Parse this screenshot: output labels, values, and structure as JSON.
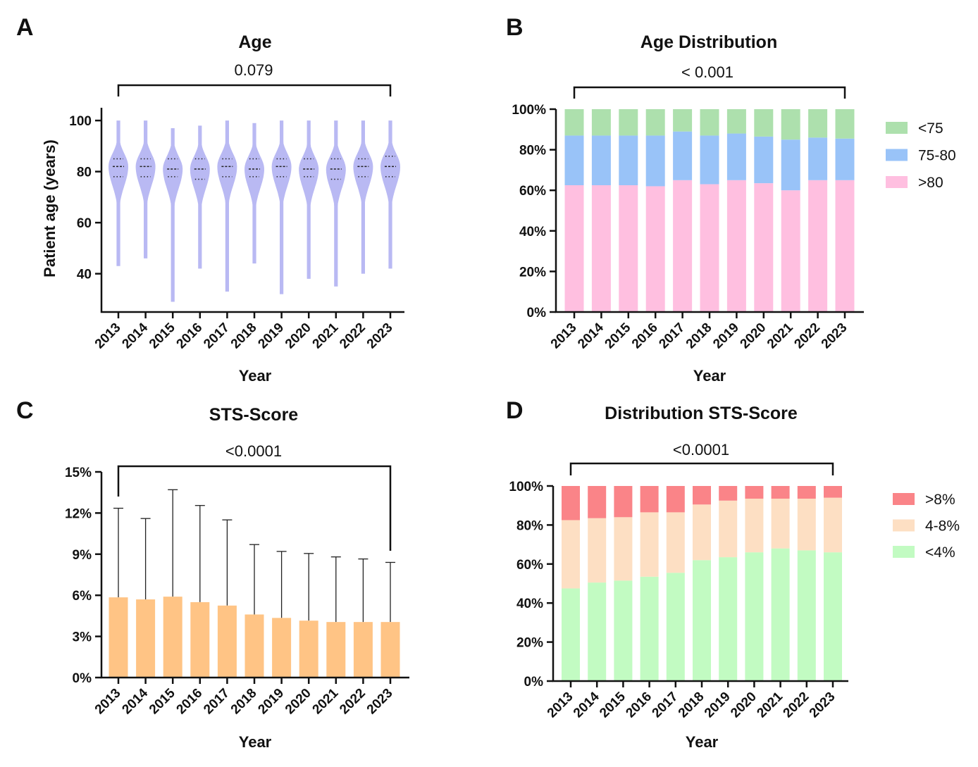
{
  "chart_data": [
    {
      "panel": "A",
      "type": "violin",
      "title": "Age",
      "xlabel": "Year",
      "ylabel": "Patient age (years)",
      "ylim": [
        25,
        105
      ],
      "yticks": [
        "40",
        "60",
        "80",
        "100"
      ],
      "categories": [
        "2013",
        "2014",
        "2015",
        "2016",
        "2017",
        "2018",
        "2019",
        "2020",
        "2021",
        "2022",
        "2023"
      ],
      "annotation": "0.079",
      "color": "#b9b9f3",
      "min": [
        43,
        46,
        29,
        42,
        33,
        44,
        32,
        38,
        35,
        40,
        42
      ],
      "max": [
        100,
        100,
        97,
        98,
        100,
        99,
        100,
        100,
        100,
        100,
        100
      ],
      "q1": [
        78,
        78,
        78,
        77,
        78,
        78,
        78,
        78,
        77,
        78,
        78
      ],
      "median": [
        82,
        82,
        81,
        81,
        82,
        81,
        82,
        81,
        81,
        82,
        82
      ],
      "q3": [
        85,
        85,
        85,
        85,
        85,
        85,
        85,
        85,
        85,
        85,
        86
      ]
    },
    {
      "panel": "B",
      "type": "stacked-bar",
      "title": "Age Distribution",
      "xlabel": "Year",
      "ylabel": "",
      "ylim": [
        0,
        100
      ],
      "yticks": [
        "0%",
        "20%",
        "40%",
        "60%",
        "80%",
        "100%"
      ],
      "categories": [
        "2013",
        "2014",
        "2015",
        "2016",
        "2017",
        "2018",
        "2019",
        "2020",
        "2021",
        "2022",
        "2023"
      ],
      "annotation": "< 0.001",
      "legend_position": "right",
      "series": [
        {
          "name": ">80",
          "color": "#ffbfe0",
          "values": [
            62.5,
            62.5,
            62.5,
            62,
            65,
            63,
            65,
            63.5,
            60,
            65,
            65
          ]
        },
        {
          "name": "75-80",
          "color": "#99c3f8",
          "values": [
            24.5,
            24.5,
            24.5,
            25,
            24,
            24,
            23,
            23,
            25,
            21,
            20.5
          ]
        },
        {
          "name": "<75",
          "color": "#ade0ad",
          "values": [
            13,
            13,
            13,
            13,
            11,
            13,
            12,
            13.5,
            15,
            14,
            14.5
          ]
        }
      ]
    },
    {
      "panel": "C",
      "type": "bar",
      "title": "STS-Score",
      "xlabel": "Year",
      "ylabel": "",
      "ylim": [
        0,
        15
      ],
      "yticks": [
        "0%",
        "3%",
        "6%",
        "9%",
        "12%",
        "15%"
      ],
      "categories": [
        "2013",
        "2014",
        "2015",
        "2016",
        "2017",
        "2018",
        "2019",
        "2020",
        "2021",
        "2022",
        "2023"
      ],
      "annotation": "<0.0001",
      "color": "#ffc485",
      "values": [
        5.85,
        5.7,
        5.9,
        5.5,
        5.25,
        4.6,
        4.35,
        4.15,
        4.05,
        4.05,
        4.05
      ],
      "error_upper": [
        12.35,
        11.6,
        13.7,
        12.55,
        11.5,
        9.7,
        9.2,
        9.05,
        8.8,
        8.65,
        8.4
      ]
    },
    {
      "panel": "D",
      "type": "stacked-bar",
      "title": "Distribution STS-Score",
      "xlabel": "Year",
      "ylabel": "",
      "ylim": [
        0,
        100
      ],
      "yticks": [
        "0%",
        "20%",
        "40%",
        "60%",
        "80%",
        "100%"
      ],
      "categories": [
        "2013",
        "2014",
        "2015",
        "2016",
        "2017",
        "2018",
        "2019",
        "2020",
        "2021",
        "2022",
        "2023"
      ],
      "annotation": "<0.0001",
      "legend_position": "right",
      "series": [
        {
          "name": "<4%",
          "color": "#c2fbc2",
          "values": [
            47.5,
            50.5,
            51.5,
            53.5,
            55.5,
            62,
            63.5,
            66,
            68,
            67,
            66
          ]
        },
        {
          "name": "4-8%",
          "color": "#fddfc3",
          "values": [
            35,
            33,
            32.5,
            33,
            31,
            28.5,
            29,
            27.5,
            25.5,
            26.5,
            28
          ]
        },
        {
          "name": ">8%",
          "color": "#fa8488",
          "values": [
            17.5,
            16.5,
            16,
            13.5,
            13.5,
            9.5,
            7.5,
            6.5,
            6.5,
            6.5,
            6
          ]
        }
      ]
    }
  ]
}
